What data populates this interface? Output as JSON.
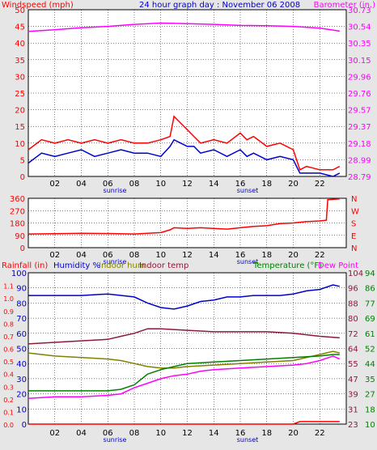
{
  "chart_data": [
    {
      "type": "line",
      "title": "24 hour graph day : November 06 2008",
      "ylabel_left": "Windspeed (mph)",
      "ylabel_right": "Barometer (in.)",
      "x_ticks": [
        "02",
        "04",
        "06",
        "08",
        "10",
        "12",
        "14",
        "16",
        "18",
        "20",
        "22"
      ],
      "x_annotations": [
        "sunrise",
        "sunset"
      ],
      "y_left_ticks": [
        "0",
        "5",
        "10",
        "15",
        "20",
        "25",
        "30",
        "35",
        "40",
        "45",
        "50"
      ],
      "y_right_ticks": [
        "28.79",
        "28.99",
        "29.18",
        "29.37",
        "29.57",
        "29.76",
        "29.96",
        "30.15",
        "30.35",
        "30.54",
        "30.73"
      ],
      "ylim_left": [
        0,
        50
      ],
      "grid": true,
      "colors": {
        "gust": "#ff0000",
        "wind": "#0000cc",
        "barometer": "#ff00ff",
        "left_axis": "#ff0000",
        "right_axis": "#ff00ff",
        "title": "#0000cc"
      },
      "series": [
        {
          "values": [
            [
              0,
              43.5
            ],
            [
              2,
              44
            ],
            [
              4,
              44.6
            ],
            [
              6,
              45
            ],
            [
              8,
              45.6
            ],
            [
              10,
              46
            ],
            [
              12,
              45.8
            ],
            [
              14,
              45.6
            ],
            [
              16,
              45.3
            ],
            [
              18,
              45.2
            ],
            [
              20,
              45
            ],
            [
              22,
              44.5
            ],
            [
              23.5,
              43.6
            ]
          ]
        },
        {
          "values": [
            [
              0,
              8
            ],
            [
              1,
              11
            ],
            [
              2,
              10
            ],
            [
              3,
              11
            ],
            [
              4,
              10
            ],
            [
              5,
              11
            ],
            [
              6,
              10
            ],
            [
              7,
              11
            ],
            [
              8,
              10
            ],
            [
              9,
              10
            ],
            [
              10,
              11
            ],
            [
              10.7,
              12
            ],
            [
              11,
              18
            ],
            [
              11.5,
              16
            ],
            [
              12,
              14
            ],
            [
              12.5,
              12
            ],
            [
              13,
              10
            ],
            [
              14,
              11
            ],
            [
              15,
              10
            ],
            [
              16,
              13
            ],
            [
              16.5,
              11
            ],
            [
              17,
              12
            ],
            [
              18,
              9
            ],
            [
              19,
              10
            ],
            [
              20,
              8
            ],
            [
              20.5,
              2
            ],
            [
              21,
              3
            ],
            [
              22,
              2
            ],
            [
              23,
              2
            ],
            [
              23.5,
              3
            ]
          ]
        },
        {
          "values": [
            [
              0,
              4
            ],
            [
              1,
              7
            ],
            [
              2,
              6
            ],
            [
              3,
              7
            ],
            [
              4,
              8
            ],
            [
              5,
              6
            ],
            [
              6,
              7
            ],
            [
              7,
              8
            ],
            [
              8,
              7
            ],
            [
              9,
              7
            ],
            [
              10,
              6
            ],
            [
              10.7,
              9
            ],
            [
              11,
              11
            ],
            [
              11.5,
              10
            ],
            [
              12,
              9
            ],
            [
              12.5,
              9
            ],
            [
              13,
              7
            ],
            [
              14,
              8
            ],
            [
              15,
              6
            ],
            [
              16,
              8
            ],
            [
              16.5,
              6
            ],
            [
              17,
              7
            ],
            [
              18,
              5
            ],
            [
              19,
              6
            ],
            [
              20,
              5
            ],
            [
              20.5,
              1
            ],
            [
              21,
              1
            ],
            [
              22,
              1
            ],
            [
              23,
              0
            ],
            [
              23.5,
              1
            ]
          ]
        }
      ]
    },
    {
      "type": "line",
      "x_ticks": [
        "02",
        "04",
        "06",
        "08",
        "10",
        "12",
        "14",
        "16",
        "18",
        "20",
        "22"
      ],
      "x_annotations": [
        "sunrise",
        "sunset"
      ],
      "y_left_ticks": [
        "0",
        "90",
        "180",
        "270",
        "360"
      ],
      "y_right_ticks": [
        "N",
        "W",
        "S",
        "E",
        "N"
      ],
      "ylim": [
        0,
        360
      ],
      "grid": true,
      "colors": {
        "direction": "#ff0000",
        "axis": "#ff0000"
      },
      "series": [
        {
          "values": [
            [
              0,
              100
            ],
            [
              2,
              102
            ],
            [
              4,
              105
            ],
            [
              6,
              103
            ],
            [
              8,
              100
            ],
            [
              9,
              105
            ],
            [
              10,
              110
            ],
            [
              10.7,
              130
            ],
            [
              11,
              145
            ],
            [
              12,
              140
            ],
            [
              13,
              145
            ],
            [
              14,
              140
            ],
            [
              15,
              135
            ],
            [
              16,
              145
            ],
            [
              17,
              155
            ],
            [
              18,
              160
            ],
            [
              19,
              175
            ],
            [
              20,
              180
            ],
            [
              21,
              190
            ],
            [
              22,
              195
            ],
            [
              22.5,
              200
            ],
            [
              22.6,
              350
            ],
            [
              23.5,
              355
            ]
          ]
        }
      ]
    },
    {
      "type": "line",
      "ylabel_left": "Rainfall (in)",
      "legend": [
        "Humidity %",
        "Indoor hum",
        "Indoor temp",
        "Temperature (°F)",
        "Dew Point"
      ],
      "x_ticks": [
        "02",
        "04",
        "06",
        "08",
        "10",
        "12",
        "14",
        "16",
        "18",
        "20",
        "22"
      ],
      "x_annotations": [
        "sunrise",
        "sunset"
      ],
      "y_rain_ticks": [
        "0.0",
        "0.1",
        "0.2",
        "0.3",
        "0.4",
        "0.5",
        "0.6",
        "0.7",
        "0.8",
        "0.9",
        "1.0",
        "1.1",
        "1.2"
      ],
      "y_humidity_ticks": [
        "0",
        "10",
        "20",
        "30",
        "40",
        "50",
        "60",
        "70",
        "80",
        "90",
        "100"
      ],
      "y_temp_ticks": [
        "23",
        "31",
        "39",
        "47",
        "55",
        "64",
        "72",
        "80",
        "88",
        "96",
        "104"
      ],
      "y_dew_ticks": [
        "10",
        "18",
        "27",
        "35",
        "44",
        "52",
        "61",
        "69",
        "77",
        "86",
        "94"
      ],
      "grid": true,
      "colors": {
        "rain": "#ff0000",
        "humidity": "#0000cc",
        "indoor_hum": "#808000",
        "indoor_temp": "#8b1a3a",
        "temperature": "#008000",
        "dew_point": "#ff00ff"
      },
      "series": [
        {
          "name": "Humidity %",
          "values": [
            [
              0,
              85
            ],
            [
              2,
              85
            ],
            [
              4,
              85
            ],
            [
              6,
              86
            ],
            [
              8,
              84
            ],
            [
              9,
              80
            ],
            [
              10,
              77
            ],
            [
              11,
              76
            ],
            [
              12,
              78
            ],
            [
              13,
              81
            ],
            [
              14,
              82
            ],
            [
              15,
              84
            ],
            [
              16,
              84
            ],
            [
              17,
              85
            ],
            [
              18,
              85
            ],
            [
              19,
              85
            ],
            [
              20,
              86
            ],
            [
              21,
              88
            ],
            [
              22,
              89
            ],
            [
              23,
              92
            ],
            [
              23.5,
              91
            ]
          ]
        },
        {
          "name": "Indoor hum",
          "values": [
            [
              0,
              47
            ],
            [
              2,
              45
            ],
            [
              4,
              44
            ],
            [
              6,
              43
            ],
            [
              7,
              42
            ],
            [
              8,
              40
            ],
            [
              9,
              38
            ],
            [
              10,
              37
            ],
            [
              11,
              37
            ],
            [
              12,
              38
            ],
            [
              14,
              39
            ],
            [
              16,
              40
            ],
            [
              18,
              41
            ],
            [
              20,
              42
            ],
            [
              22,
              46
            ],
            [
              23,
              48
            ],
            [
              23.5,
              47
            ]
          ]
        },
        {
          "name": "Indoor temp",
          "values": [
            [
              0,
              53
            ],
            [
              2,
              54
            ],
            [
              4,
              55
            ],
            [
              6,
              56
            ],
            [
              7,
              58
            ],
            [
              8,
              60
            ],
            [
              9,
              63
            ],
            [
              10,
              63
            ],
            [
              12,
              62
            ],
            [
              14,
              61
            ],
            [
              16,
              61
            ],
            [
              18,
              61
            ],
            [
              20,
              60
            ],
            [
              22,
              58
            ],
            [
              23.5,
              57
            ]
          ]
        },
        {
          "name": "Temperature (°F)",
          "values": [
            [
              0,
              22
            ],
            [
              2,
              22
            ],
            [
              4,
              22
            ],
            [
              6,
              22
            ],
            [
              7,
              23
            ],
            [
              8,
              26
            ],
            [
              9,
              33
            ],
            [
              10,
              36
            ],
            [
              11,
              38
            ],
            [
              12,
              40
            ],
            [
              14,
              41
            ],
            [
              16,
              42
            ],
            [
              18,
              43
            ],
            [
              20,
              44
            ],
            [
              22,
              45
            ],
            [
              23,
              46
            ],
            [
              23.5,
              46
            ]
          ]
        },
        {
          "name": "Dew Point",
          "values": [
            [
              0,
              17
            ],
            [
              2,
              18
            ],
            [
              4,
              18
            ],
            [
              6,
              19
            ],
            [
              7,
              20
            ],
            [
              8,
              24
            ],
            [
              9,
              27
            ],
            [
              10,
              30
            ],
            [
              11,
              32
            ],
            [
              12,
              33
            ],
            [
              13,
              35
            ],
            [
              14,
              36
            ],
            [
              16,
              37
            ],
            [
              18,
              38
            ],
            [
              20,
              39
            ],
            [
              21,
              40
            ],
            [
              22,
              42
            ],
            [
              23,
              45
            ],
            [
              23.5,
              43
            ]
          ]
        },
        {
          "name": "Rainfall (in)",
          "values": [
            [
              0,
              0
            ],
            [
              20,
              0
            ],
            [
              20.5,
              0.02
            ],
            [
              23.5,
              0.02
            ]
          ]
        }
      ]
    }
  ]
}
